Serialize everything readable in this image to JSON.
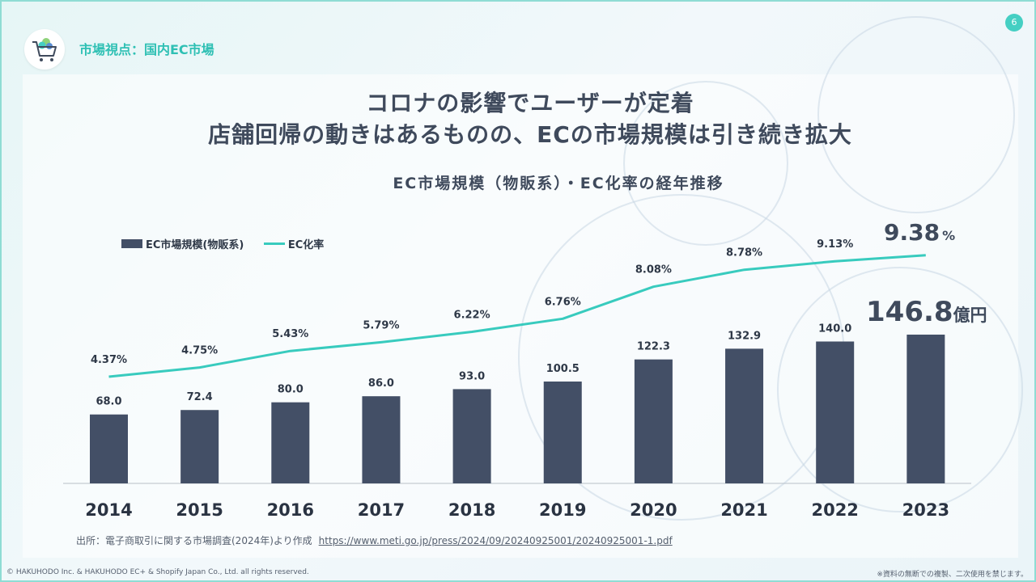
{
  "header": {
    "section_title": "市場視点：国内EC市場",
    "page_number": "6",
    "logo_icon": "shopping-cart-icon"
  },
  "headline": {
    "line1": "コロナの影響でユーザーが定着",
    "line2": "店舗回帰の動きはあるものの、ECの市場規模は引き続き拡大"
  },
  "chart_data": {
    "type": "bar",
    "title": "EC市場規模（物販系）・EC化率の経年推移",
    "categories": [
      "2014",
      "2015",
      "2016",
      "2017",
      "2018",
      "2019",
      "2020",
      "2021",
      "2022",
      "2023"
    ],
    "series": [
      {
        "name": "EC市場規模(物販系)",
        "type": "bar",
        "color": "#434f66",
        "values": [
          68.0,
          72.4,
          80.0,
          86.0,
          93.0,
          100.5,
          122.3,
          132.9,
          140.0,
          146.8
        ],
        "labels": [
          "68.0",
          "72.4",
          "80.0",
          "86.0",
          "93.0",
          "100.5",
          "122.3",
          "132.9",
          "140.0",
          "146.8"
        ],
        "last_unit": "億円"
      },
      {
        "name": "EC化率",
        "type": "line",
        "color": "#38cbbe",
        "values": [
          4.37,
          4.75,
          5.43,
          5.79,
          6.22,
          6.76,
          8.08,
          8.78,
          9.13,
          9.38
        ],
        "labels": [
          "4.37%",
          "4.75%",
          "5.43%",
          "5.79%",
          "6.22%",
          "6.76%",
          "8.08%",
          "8.78%",
          "9.13%",
          "9.38"
        ],
        "last_unit": "%"
      }
    ],
    "legend_position": "top-left",
    "grid": false
  },
  "source": {
    "text": "出所：電子商取引に関する市場調査(2024年)より作成",
    "url": "https://www.meti.go.jp/press/2024/09/20240925001/20240925001-1.pdf"
  },
  "footer": {
    "copyright": "© HAKUHODO Inc. & HAKUHODO EC+ & Shopify Japan Co., Ltd. all rights reserved.",
    "notice": "※資料の無断での複製、二次使用を禁じます。"
  }
}
